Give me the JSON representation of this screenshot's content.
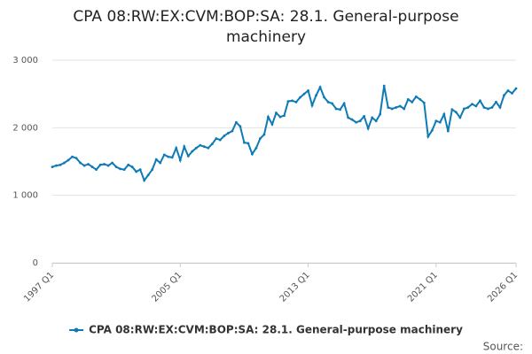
{
  "chart_data": {
    "type": "line",
    "title": "CPA 08:RW:EX:CVM:BOP:SA: 28.1. General-purpose machinery",
    "source": "Source:",
    "categories": [
      "1997 Q1",
      null,
      null,
      null,
      null,
      null,
      null,
      null,
      null,
      null,
      null,
      null,
      null,
      null,
      null,
      null,
      null,
      null,
      null,
      null,
      null,
      null,
      null,
      null,
      null,
      null,
      null,
      null,
      null,
      null,
      null,
      null,
      "2005 Q1",
      null,
      null,
      null,
      null,
      null,
      null,
      null,
      null,
      null,
      null,
      null,
      null,
      null,
      null,
      null,
      null,
      null,
      null,
      null,
      null,
      null,
      null,
      null,
      null,
      null,
      null,
      null,
      null,
      null,
      null,
      null,
      "2013 Q1",
      null,
      null,
      null,
      null,
      null,
      null,
      null,
      null,
      null,
      null,
      null,
      null,
      null,
      null,
      null,
      null,
      null,
      null,
      null,
      null,
      null,
      null,
      null,
      null,
      null,
      null,
      null,
      null,
      null,
      null,
      null,
      "2021 Q1",
      null,
      null,
      null,
      null,
      null,
      null,
      null,
      null,
      null,
      null,
      null,
      null,
      null,
      null,
      null,
      null,
      null,
      null,
      null,
      "2026 Q1"
    ],
    "series": [
      {
        "name": "CPA 08:RW:EX:CVM:BOP:SA: 28.1. General-purpose machinery",
        "color": "#0e7bb7",
        "values": [
          1420,
          1440,
          1450,
          1480,
          1520,
          1570,
          1550,
          1480,
          1440,
          1460,
          1420,
          1380,
          1450,
          1460,
          1440,
          1480,
          1420,
          1390,
          1380,
          1450,
          1420,
          1350,
          1380,
          1220,
          1300,
          1380,
          1530,
          1480,
          1600,
          1570,
          1560,
          1700,
          1520,
          1720,
          1580,
          1650,
          1700,
          1740,
          1720,
          1700,
          1760,
          1840,
          1820,
          1880,
          1920,
          1950,
          2080,
          2020,
          1780,
          1770,
          1610,
          1700,
          1840,
          1900,
          2160,
          2050,
          2220,
          2160,
          2180,
          2390,
          2400,
          2380,
          2450,
          2500,
          2550,
          2330,
          2480,
          2600,
          2450,
          2380,
          2360,
          2280,
          2270,
          2360,
          2150,
          2120,
          2080,
          2100,
          2170,
          1990,
          2150,
          2100,
          2200,
          2620,
          2300,
          2280,
          2300,
          2320,
          2280,
          2420,
          2380,
          2460,
          2420,
          2370,
          1870,
          1960,
          2100,
          2080,
          2200,
          1950,
          2270,
          2230,
          2150,
          2280,
          2300,
          2350,
          2320,
          2400,
          2300,
          2280,
          2300,
          2380,
          2300,
          2480,
          2550,
          2510,
          2580
        ]
      }
    ],
    "ylim": [
      0,
      3000
    ],
    "yticks": [
      0,
      {
        "value": 1000,
        "label": "1 000"
      },
      {
        "value": 2000,
        "label": "2 000"
      },
      {
        "value": 3000,
        "label": "3 000"
      }
    ],
    "grid": true,
    "legend": "bottom"
  }
}
